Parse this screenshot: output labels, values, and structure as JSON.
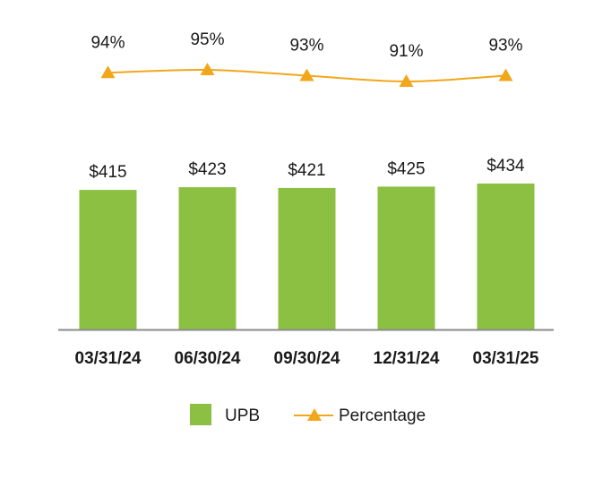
{
  "chart_data": {
    "type": "bar",
    "categories": [
      "03/31/24",
      "06/30/24",
      "09/30/24",
      "12/31/24",
      "03/31/25"
    ],
    "series": [
      {
        "name": "UPB",
        "type": "bar",
        "values": [
          415,
          423,
          421,
          425,
          434
        ],
        "labels": [
          "$415",
          "$423",
          "$421",
          "$425",
          "$434"
        ],
        "color": "#8bc043"
      },
      {
        "name": "Percentage",
        "type": "line",
        "marker": "triangle",
        "values": [
          94,
          95,
          93,
          91,
          93
        ],
        "labels": [
          "94%",
          "95%",
          "93%",
          "91%",
          "93%"
        ],
        "color": "#f2a71b"
      }
    ],
    "ylim": [
      0,
      450
    ],
    "grid": false,
    "legend_position": "bottom-center",
    "axis_color": "#8a8a8a"
  }
}
